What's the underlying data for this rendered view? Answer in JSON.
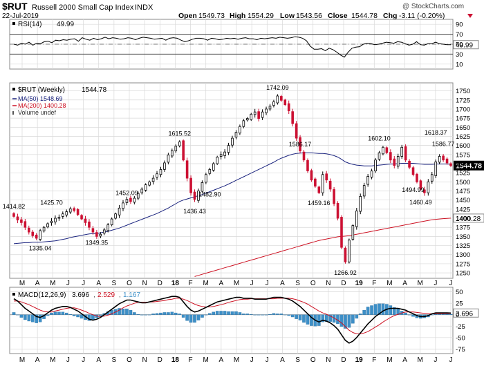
{
  "header": {
    "symbol": "$RUT",
    "name": "Russell 2000 Small Cap Index",
    "exchange": "INDX",
    "date": "22-Jul-2019",
    "open_label": "Open",
    "open": "1549.73",
    "high_label": "High",
    "high": "1554.29",
    "low_label": "Low",
    "low": "1543.56",
    "close_label": "Close",
    "close": "1544.78",
    "chg_label": "Chg",
    "chg": "-3.11 (-0.20%)",
    "watermark": "@ StockCharts.com"
  },
  "colors": {
    "up": "#000000",
    "down": "#cc1133",
    "ma50": "#1a237e",
    "ma200": "#cc1122",
    "macd": "#000000",
    "signal": "#cc1122",
    "hist": "#3d8fc7",
    "grid": "#d8d8d8"
  },
  "chart_data": {
    "type": "candlestick",
    "period": "weekly",
    "months": [
      "M",
      "A",
      "M",
      "J",
      "J",
      "A",
      "S",
      "O",
      "N",
      "D",
      "18",
      "F",
      "M",
      "A",
      "M",
      "J",
      "J",
      "A",
      "S",
      "O",
      "N",
      "D",
      "19",
      "F",
      "M",
      "A",
      "M",
      "J",
      "J"
    ],
    "month_bold": [
      "18",
      "19"
    ],
    "rsi": {
      "label": "RSI(14)",
      "value": "49.99",
      "ylim": [
        0,
        100
      ],
      "ticks": [
        "90",
        "70",
        "50",
        "30",
        "10"
      ],
      "levels": [
        70,
        30
      ],
      "values": [
        50,
        48,
        52,
        50,
        54,
        48,
        52,
        51,
        55,
        56,
        53,
        58,
        57,
        59,
        58,
        60,
        61,
        56,
        63,
        60,
        58,
        62,
        59,
        61,
        64,
        61,
        63,
        62,
        60,
        61,
        63,
        62,
        59,
        62,
        64,
        63,
        62,
        60,
        61,
        62,
        58,
        62,
        63,
        62,
        58,
        55,
        57,
        60,
        62,
        62,
        61,
        58,
        62,
        61,
        59,
        60,
        62,
        61,
        62,
        60,
        62,
        63,
        61,
        61,
        59,
        62,
        61,
        62,
        63,
        62,
        64,
        63,
        62,
        63,
        65,
        64,
        62,
        57,
        46,
        40,
        40,
        41,
        37,
        42,
        39,
        34,
        28,
        24,
        34,
        42,
        44,
        45,
        50,
        52,
        51,
        49,
        50,
        52,
        54,
        53,
        52,
        55,
        54,
        51,
        48,
        50,
        55,
        49,
        48,
        51,
        51,
        54,
        51,
        50,
        49,
        49
      ]
    },
    "price": {
      "label": "$RUT (Weekly)",
      "last": "1544.78",
      "ylim": [
        1235,
        1772
      ],
      "ticks": [
        "1750",
        "1725",
        "1700",
        "1675",
        "1650",
        "1625",
        "1600",
        "1575",
        "1550",
        "1525",
        "1500",
        "1475",
        "1450",
        "1425",
        "1400",
        "1375",
        "1350",
        "1325",
        "1300",
        "1275",
        "1250"
      ],
      "legend_ma50": "MA(50) 1548.69",
      "legend_ma200": "MA(200) 1400.28",
      "legend_vol": "Volume undef",
      "ma200_end": "1400.28",
      "annotations": [
        "1414.82",
        "1425.70",
        "1335.04",
        "1452.09",
        "1349.35",
        "1615.52",
        "1436.43",
        "1482.90",
        "1742.09",
        "1586.17",
        "1459.16",
        "1266.92",
        "1602.10",
        "1494.99",
        "1618.37",
        "1460.49",
        "1586.77"
      ],
      "closes": [
        1405,
        1395,
        1388,
        1375,
        1362,
        1352,
        1345,
        1366,
        1375,
        1385,
        1392,
        1400,
        1403,
        1412,
        1418,
        1426,
        1421,
        1410,
        1398,
        1388,
        1375,
        1362,
        1350,
        1356,
        1368,
        1382,
        1398,
        1412,
        1428,
        1442,
        1452,
        1446,
        1455,
        1468,
        1480,
        1492,
        1500,
        1510,
        1522,
        1534,
        1552,
        1574,
        1586,
        1598,
        1610,
        1560,
        1510,
        1470,
        1452,
        1475,
        1498,
        1520,
        1534,
        1550,
        1568,
        1575,
        1582,
        1600,
        1620,
        1636,
        1652,
        1668,
        1674,
        1686,
        1692,
        1674,
        1692,
        1700,
        1708,
        1720,
        1736,
        1724,
        1712,
        1695,
        1660,
        1620,
        1585,
        1560,
        1530,
        1505,
        1488,
        1470,
        1520,
        1505,
        1480,
        1440,
        1400,
        1320,
        1280,
        1340,
        1380,
        1420,
        1460,
        1490,
        1515,
        1530,
        1560,
        1580,
        1595,
        1580,
        1560,
        1545,
        1570,
        1595,
        1560,
        1540,
        1520,
        1500,
        1480,
        1470,
        1500,
        1520,
        1555,
        1570,
        1560,
        1552,
        1544.78
      ],
      "ma50": [
        1330,
        1331,
        1332,
        1333,
        1333,
        1334,
        1334,
        1334,
        1335,
        1336,
        1337,
        1338,
        1340,
        1342,
        1344,
        1347,
        1349,
        1351,
        1353,
        1355,
        1357,
        1358,
        1358,
        1360,
        1362,
        1364,
        1367,
        1370,
        1373,
        1377,
        1381,
        1385,
        1389,
        1393,
        1397,
        1401,
        1405,
        1409,
        1413,
        1418,
        1423,
        1428,
        1434,
        1440,
        1446,
        1450,
        1453,
        1456,
        1459,
        1462,
        1465,
        1469,
        1473,
        1477,
        1481,
        1485,
        1489,
        1494,
        1499,
        1504,
        1509,
        1514,
        1519,
        1524,
        1529,
        1534,
        1539,
        1544,
        1549,
        1554,
        1560,
        1565,
        1569,
        1573,
        1576,
        1578,
        1579,
        1580,
        1580,
        1580,
        1579,
        1578,
        1578,
        1577,
        1575,
        1572,
        1568,
        1562,
        1555,
        1551,
        1548,
        1546,
        1545,
        1544,
        1544,
        1544,
        1545,
        1546,
        1547,
        1548,
        1549,
        1549,
        1550,
        1551,
        1551,
        1551,
        1551,
        1550,
        1549,
        1548,
        1548,
        1548,
        1549,
        1549,
        1549,
        1549,
        1548.69
      ],
      "ma200": [
        null,
        null,
        null,
        null,
        null,
        null,
        null,
        null,
        null,
        null,
        null,
        null,
        null,
        null,
        null,
        null,
        null,
        null,
        null,
        null,
        null,
        null,
        null,
        null,
        null,
        null,
        null,
        null,
        null,
        null,
        null,
        null,
        null,
        null,
        null,
        null,
        null,
        null,
        null,
        null,
        null,
        null,
        null,
        null,
        null,
        null,
        null,
        null,
        1240,
        1243,
        1246,
        1249,
        1252,
        1255,
        1258,
        1261,
        1264,
        1267,
        1270,
        1273,
        1276,
        1279,
        1282,
        1285,
        1288,
        1291,
        1294,
        1297,
        1300,
        1303,
        1306,
        1309,
        1312,
        1315,
        1318,
        1321,
        1324,
        1327,
        1330,
        1333,
        1336,
        1339,
        1341,
        1343,
        1345,
        1347,
        1349,
        1350,
        1351,
        1352,
        1354,
        1356,
        1358,
        1360,
        1362,
        1364,
        1366,
        1368,
        1370,
        1372,
        1374,
        1376,
        1378,
        1380,
        1382,
        1384,
        1386,
        1388,
        1390,
        1392,
        1394,
        1396,
        1397,
        1398,
        1399,
        1399.5,
        1400.28
      ]
    },
    "macd": {
      "label": "MACD(12,26,9)",
      "macd_value": "3.696",
      "signal_value": "2.529",
      "hist_value": "1.167",
      "last": "3.696",
      "ylim": [
        -85,
        60
      ],
      "ticks": [
        "50",
        "25",
        "0",
        "-25",
        "-50",
        "-75"
      ],
      "macd_line": [
        35,
        30,
        22,
        14,
        8,
        2,
        -4,
        -6,
        -2,
        4,
        10,
        14,
        16,
        18,
        18,
        16,
        12,
        8,
        2,
        -4,
        -10,
        -12,
        -10,
        -6,
        0,
        6,
        12,
        18,
        24,
        28,
        32,
        32,
        30,
        28,
        26,
        26,
        28,
        30,
        32,
        34,
        36,
        38,
        40,
        40,
        38,
        28,
        18,
        10,
        6,
        8,
        12,
        16,
        20,
        24,
        28,
        30,
        32,
        34,
        36,
        38,
        38,
        36,
        36,
        36,
        34,
        34,
        34,
        34,
        36,
        38,
        38,
        38,
        36,
        34,
        30,
        24,
        18,
        10,
        2,
        -6,
        -12,
        -16,
        -12,
        -14,
        -18,
        -24,
        -32,
        -44,
        -56,
        -62,
        -58,
        -50,
        -40,
        -30,
        -20,
        -12,
        -4,
        2,
        8,
        12,
        14,
        14,
        14,
        12,
        10,
        6,
        2,
        -2,
        -4,
        -4,
        -2,
        2,
        4,
        4,
        4,
        4,
        3.696
      ],
      "signal_line": [
        30,
        30,
        28,
        25,
        22,
        18,
        14,
        10,
        7,
        6,
        6,
        8,
        10,
        12,
        14,
        15,
        15,
        13,
        10,
        7,
        3,
        0,
        -3,
        -4,
        -3,
        -1,
        2,
        6,
        10,
        15,
        19,
        22,
        25,
        27,
        27,
        27,
        28,
        28,
        29,
        30,
        31,
        33,
        34,
        36,
        36,
        34,
        31,
        27,
        23,
        20,
        18,
        17,
        17,
        18,
        20,
        22,
        24,
        27,
        29,
        31,
        33,
        34,
        34,
        35,
        35,
        35,
        35,
        35,
        35,
        35,
        36,
        36,
        36,
        36,
        35,
        33,
        30,
        27,
        23,
        18,
        13,
        8,
        4,
        1,
        -3,
        -7,
        -12,
        -18,
        -26,
        -34,
        -39,
        -42,
        -42,
        -40,
        -37,
        -32,
        -27,
        -22,
        -16,
        -11,
        -6,
        -2,
        1,
        4,
        6,
        6,
        6,
        5,
        4,
        3,
        2,
        2,
        2,
        2,
        2.3,
        2.5,
        2.529
      ],
      "histogram": [
        5,
        0,
        -6,
        -11,
        -14,
        -16,
        -18,
        -16,
        -9,
        -2,
        4,
        6,
        6,
        6,
        4,
        1,
        -3,
        -5,
        -8,
        -11,
        -13,
        -12,
        -7,
        -2,
        3,
        7,
        10,
        12,
        14,
        13,
        13,
        10,
        5,
        1,
        -1,
        -1,
        0,
        2,
        3,
        4,
        5,
        5,
        6,
        4,
        2,
        -6,
        -13,
        -17,
        -17,
        -12,
        -6,
        -1,
        3,
        6,
        8,
        8,
        8,
        7,
        7,
        7,
        5,
        2,
        2,
        1,
        -1,
        -1,
        -1,
        -1,
        1,
        3,
        2,
        2,
        0,
        -2,
        -5,
        -9,
        -12,
        -17,
        -21,
        -24,
        -25,
        -24,
        -16,
        -15,
        -15,
        -17,
        -20,
        -26,
        -30,
        -28,
        -19,
        -8,
        2,
        10,
        17,
        20,
        23,
        24,
        24,
        23,
        20,
        16,
        13,
        8,
        4,
        0,
        -4,
        -7,
        -8,
        -7,
        -5,
        0,
        2,
        2,
        1.7,
        1.5,
        1.167
      ]
    }
  }
}
